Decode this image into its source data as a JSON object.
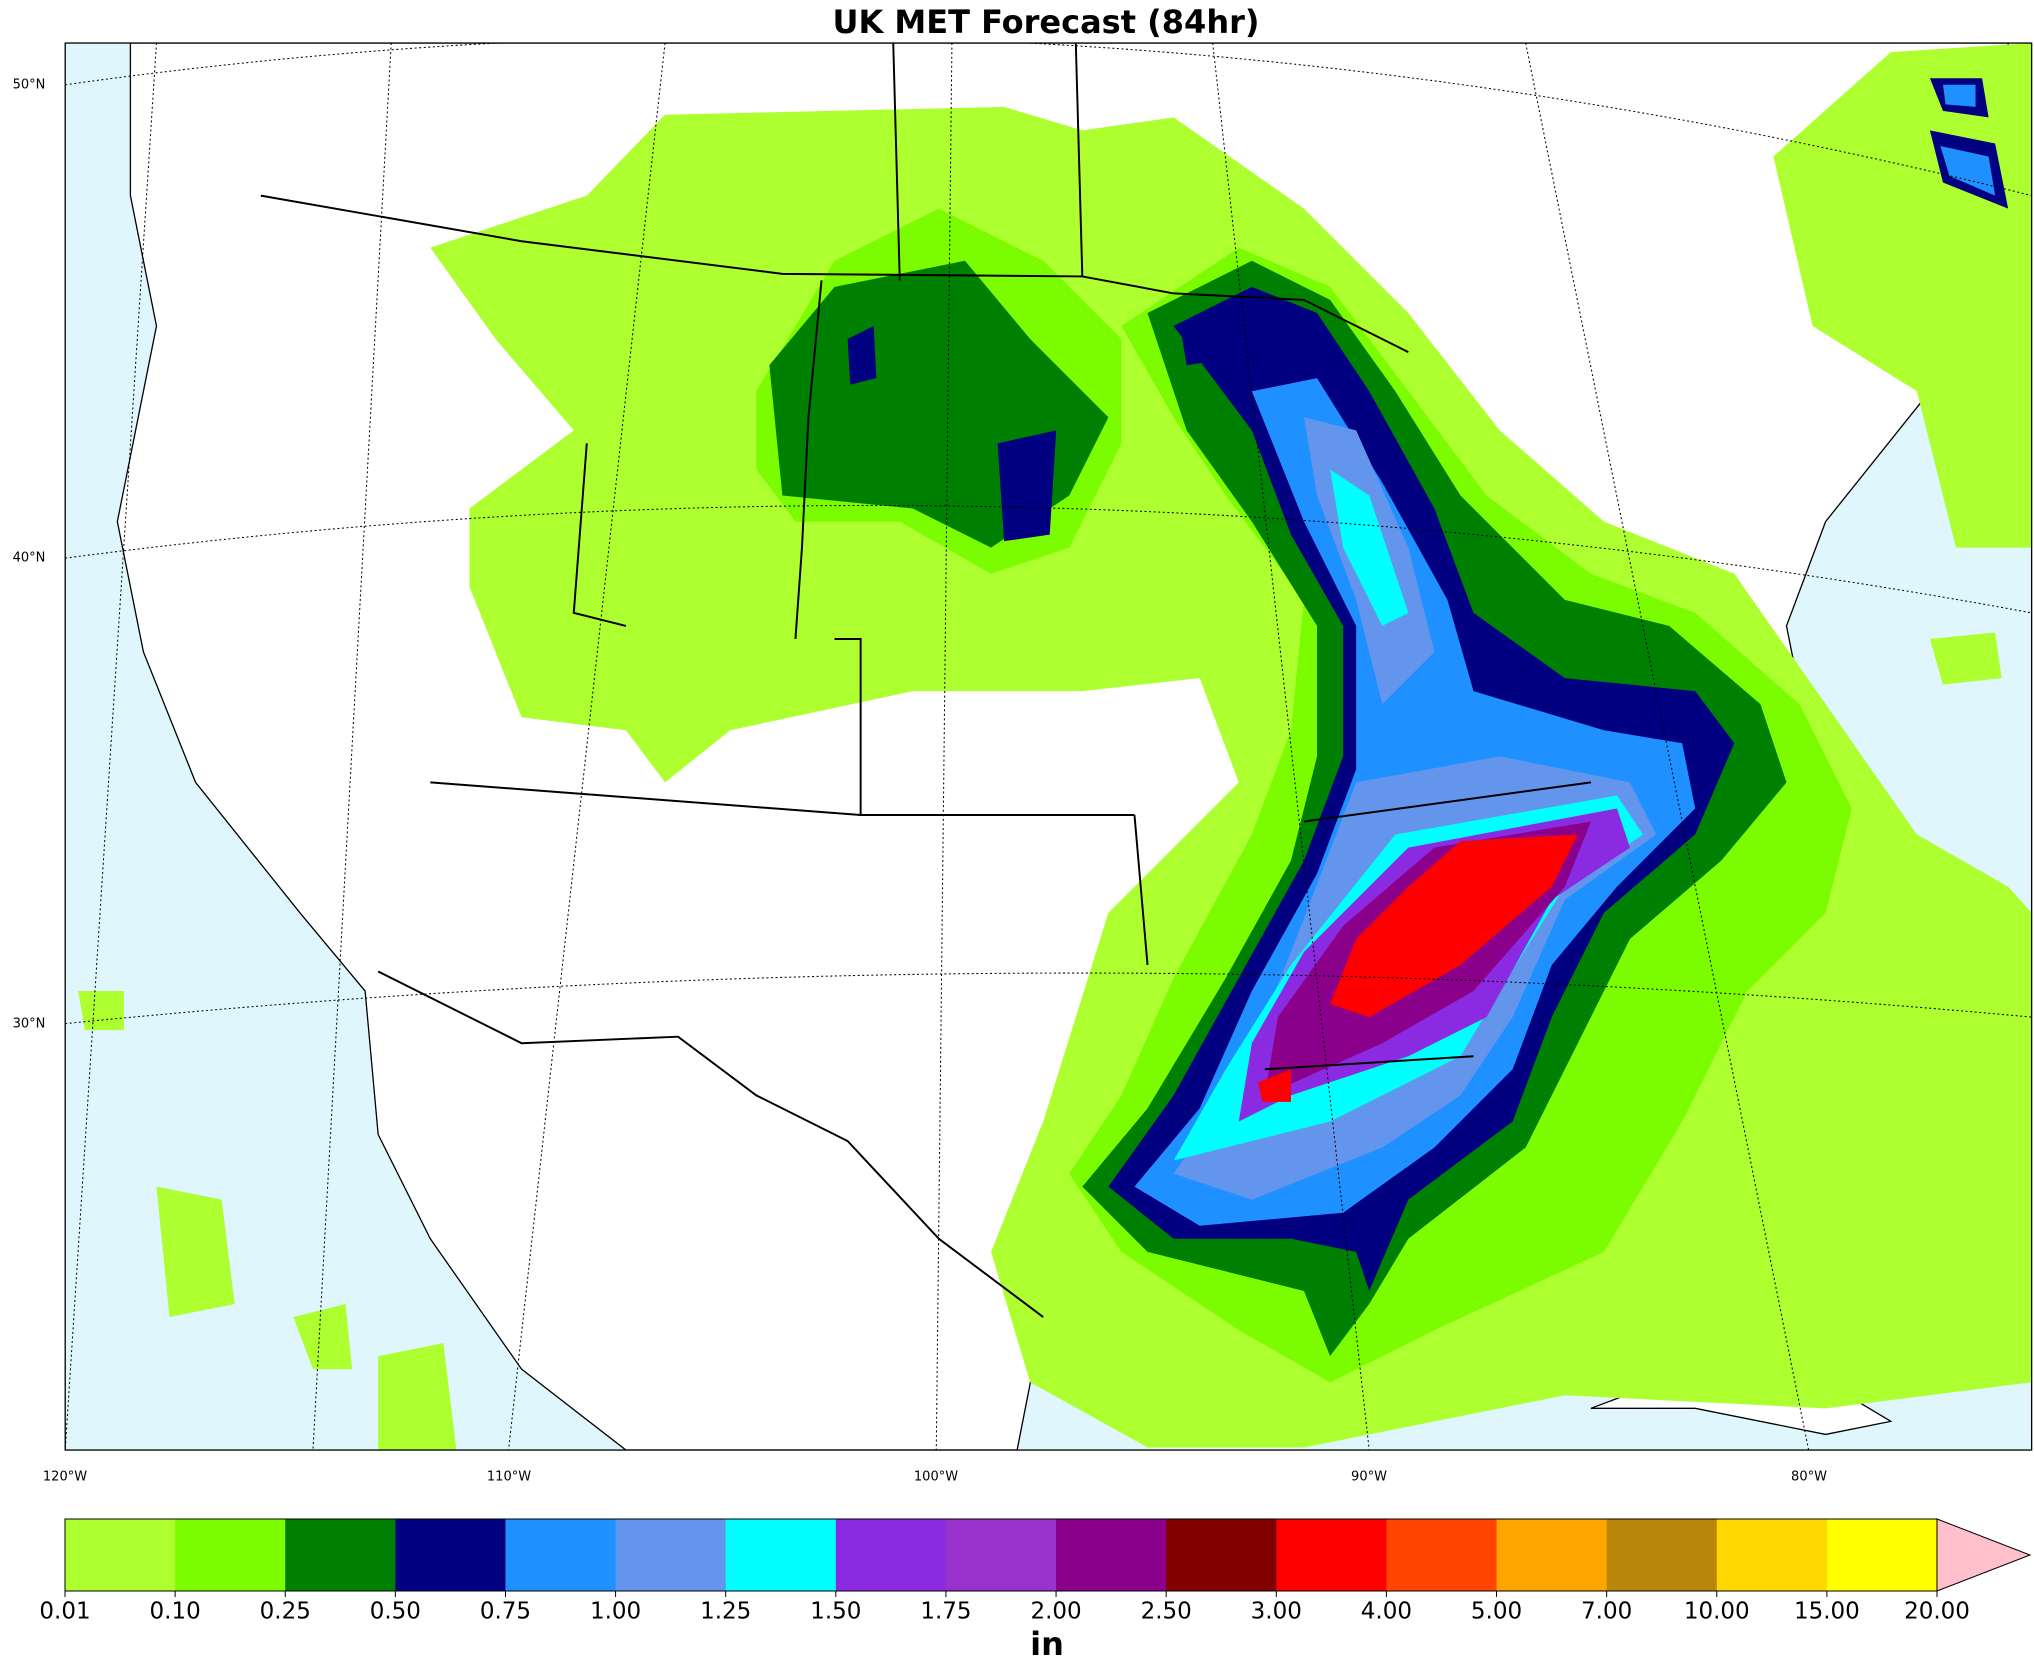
{
  "title": "UK MET Forecast (84hr)",
  "lat_labels": [
    "50°N",
    "40°N",
    "30°N"
  ],
  "lon_labels": [
    "120°W",
    "110°W",
    "100°W",
    "90°W",
    "80°W"
  ],
  "colorbar": {
    "label": "in",
    "levels": [
      {
        "value": 0.01,
        "label": "0.01"
      },
      {
        "value": 0.1,
        "label": "0.10"
      },
      {
        "value": 0.25,
        "label": "0.25"
      },
      {
        "value": 0.5,
        "label": "0.50"
      },
      {
        "value": 0.75,
        "label": "0.75"
      },
      {
        "value": 1,
        "label": "1.00"
      },
      {
        "value": 1.25,
        "label": "1.25"
      },
      {
        "value": 1.5,
        "label": "1.50"
      },
      {
        "value": 1.75,
        "label": "1.75"
      },
      {
        "value": 2,
        "label": "2.00"
      },
      {
        "value": 2.5,
        "label": "2.50"
      },
      {
        "value": 3,
        "label": "3.00"
      },
      {
        "value": 4,
        "label": "4.00"
      },
      {
        "value": 5,
        "label": "5.00"
      },
      {
        "value": 7,
        "label": "7.00"
      },
      {
        "value": 10,
        "label": "10.00"
      },
      {
        "value": 15,
        "label": "15.00"
      },
      {
        "value": 20,
        "label": "20.00"
      }
    ],
    "colors": [
      "#adff2f",
      "#7cfc00",
      "#008000",
      "#000080",
      "#1e90ff",
      "#6495ed",
      "#00ffff",
      "#8a2be2",
      "#9932cc",
      "#8b008b",
      "#800000",
      "#ff0000",
      "#ff4500",
      "#ffa500",
      "#b8860b",
      "#ffd700",
      "#ffff00"
    ],
    "extend_color": "#ffc0cb"
  }
}
